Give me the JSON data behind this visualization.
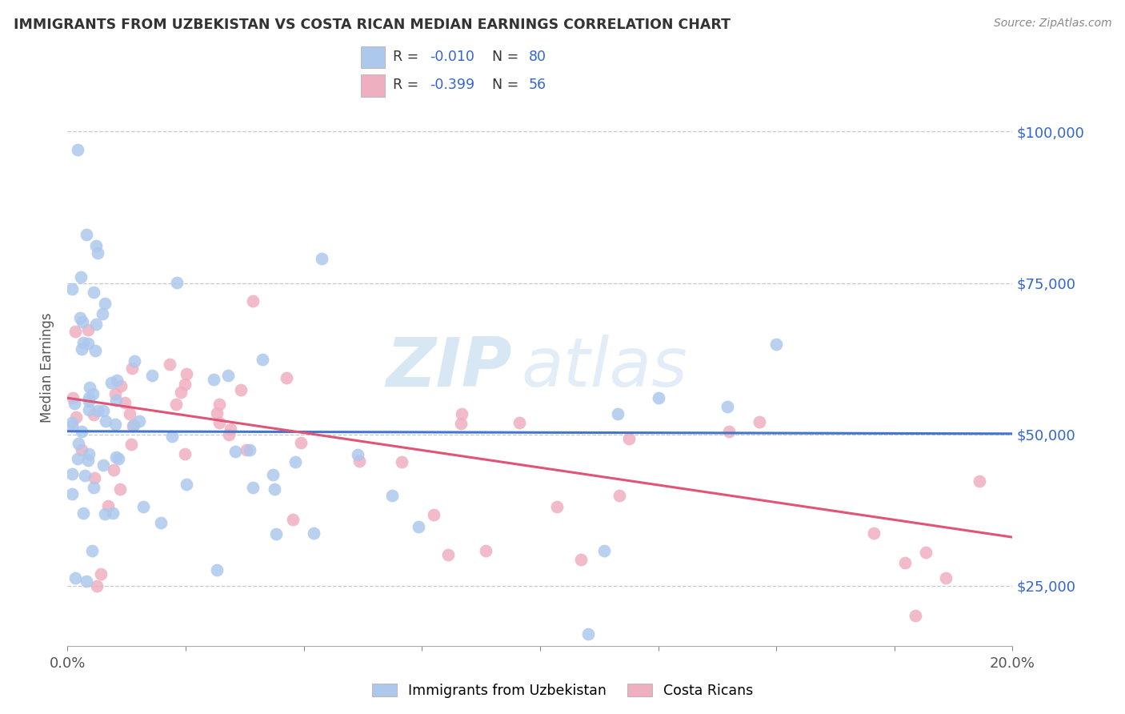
{
  "title": "IMMIGRANTS FROM UZBEKISTAN VS COSTA RICAN MEDIAN EARNINGS CORRELATION CHART",
  "source": "Source: ZipAtlas.com",
  "ylabel": "Median Earnings",
  "yticks": [
    25000,
    50000,
    75000,
    100000
  ],
  "ytick_labels": [
    "$25,000",
    "$50,000",
    "$75,000",
    "$100,000"
  ],
  "legend_labels": [
    "Immigrants from Uzbekistan",
    "Costa Ricans"
  ],
  "legend_r": [
    -0.01,
    -0.399
  ],
  "legend_n": [
    80,
    56
  ],
  "series1_color": "#adc8ed",
  "series2_color": "#f0afc0",
  "line1_color": "#4477cc",
  "line2_color": "#e05575",
  "xmin": 0.0,
  "xmax": 0.2,
  "ymin": 15000,
  "ymax": 107000,
  "watermark_text": "ZIP",
  "watermark_text2": "atlas",
  "background_color": "#ffffff",
  "grid_color": "#c8c8c8",
  "xticks": [
    0.0,
    0.025,
    0.05,
    0.075,
    0.1,
    0.125,
    0.15,
    0.175,
    0.2
  ]
}
